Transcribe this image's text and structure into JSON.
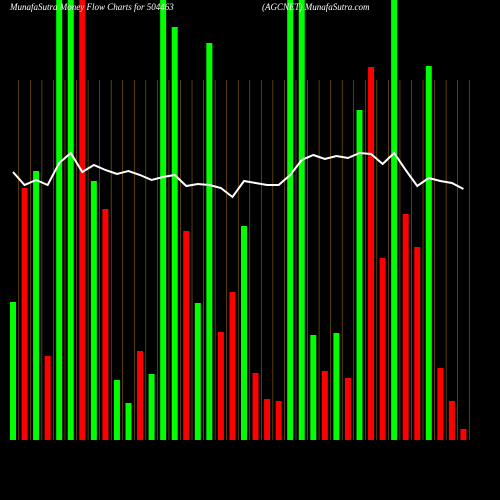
{
  "chart_data": {
    "type": "bar",
    "title": "MunafaSutra Money Flow  Charts for 504463",
    "subtitle": "(AGCNET) MunafaSutra.com",
    "values": [
      138,
      252,
      269,
      84,
      440,
      440,
      440,
      259,
      231,
      60,
      37,
      89,
      66,
      440,
      413,
      209,
      137,
      397,
      108,
      148,
      214,
      67,
      41,
      39,
      440,
      440,
      105,
      69,
      107,
      62,
      330,
      373,
      182,
      440,
      226,
      193,
      374,
      72,
      39,
      11
    ],
    "bar_colors": [
      "#00ff00",
      "#ff0000",
      "#00ff00",
      "#ff0000",
      "#00ff00",
      "#00ff00",
      "#ff0000",
      "#00ff00",
      "#ff0000",
      "#00ff00",
      "#00ff00",
      "#ff0000",
      "#00ff00",
      "#00ff00",
      "#00ff00",
      "#ff0000",
      "#00ff00",
      "#00ff00",
      "#ff0000",
      "#ff0000",
      "#00ff00",
      "#ff0000",
      "#ff0000",
      "#ff0000",
      "#00ff00",
      "#00ff00",
      "#00ff00",
      "#ff0000",
      "#00ff00",
      "#ff0000",
      "#00ff00",
      "#ff0000",
      "#ff0000",
      "#00ff00",
      "#ff0000",
      "#ff0000",
      "#00ff00",
      "#ff0000",
      "#ff0000",
      "#ff0000"
    ],
    "line_values": [
      268,
      255,
      260,
      255,
      277,
      287,
      268,
      275,
      270,
      266,
      269,
      265,
      260,
      263,
      265,
      254,
      256,
      255,
      252,
      243,
      259,
      257,
      255,
      255,
      265,
      280,
      285,
      281,
      284,
      282,
      287,
      286,
      276,
      287,
      270,
      254,
      262,
      259,
      257,
      251
    ],
    "line_color": "#ffffff",
    "grid_color": "#b8860b",
    "ylim": [
      0,
      440
    ]
  }
}
